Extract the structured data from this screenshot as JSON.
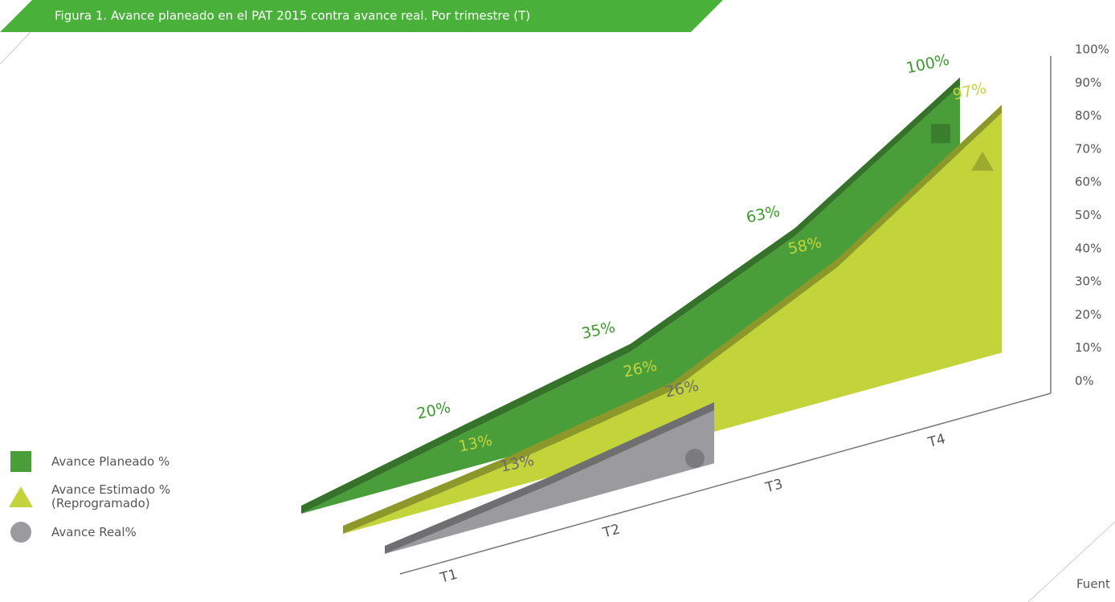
{
  "chart_data": {
    "type": "area3d",
    "title": "Figura 1. Avance planeado en el PAT 2015 contra avance real. Por trimestre (T)",
    "source": "Fuent",
    "categories": [
      "T1",
      "T2",
      "T3",
      "T4"
    ],
    "series": [
      {
        "name": "Avance Planeado %",
        "color": "#4a9e3a",
        "marker": "square",
        "values": [
          20,
          35,
          63,
          100
        ],
        "value_labels": [
          "20%",
          "35%",
          "63%",
          "100%"
        ]
      },
      {
        "name": "Avance Estimado % (Reprogramado)",
        "color": "#c3d43a",
        "marker": "triangle",
        "values": [
          13,
          26,
          58,
          97
        ],
        "value_labels": [
          "13%",
          "26%",
          "58%",
          "97%"
        ]
      },
      {
        "name": "Avance  Real%",
        "color": "#9a9a9f",
        "marker": "circle",
        "values": [
          13,
          26,
          null,
          null
        ],
        "value_labels": [
          "13%",
          "26%",
          null,
          null
        ]
      }
    ],
    "ylim": [
      0,
      100
    ],
    "yticks": [
      {
        "value": 0,
        "label": "0%"
      },
      {
        "value": 10,
        "label": "10%"
      },
      {
        "value": 20,
        "label": "20%"
      },
      {
        "value": 30,
        "label": "30%"
      },
      {
        "value": 40,
        "label": "40%"
      },
      {
        "value": 50,
        "label": "50%"
      },
      {
        "value": 60,
        "label": "60%"
      },
      {
        "value": 70,
        "label": "70%"
      },
      {
        "value": 80,
        "label": "80%"
      },
      {
        "value": 90,
        "label": "90%"
      },
      {
        "value": 100,
        "label": "100%"
      }
    ],
    "grid": false
  }
}
